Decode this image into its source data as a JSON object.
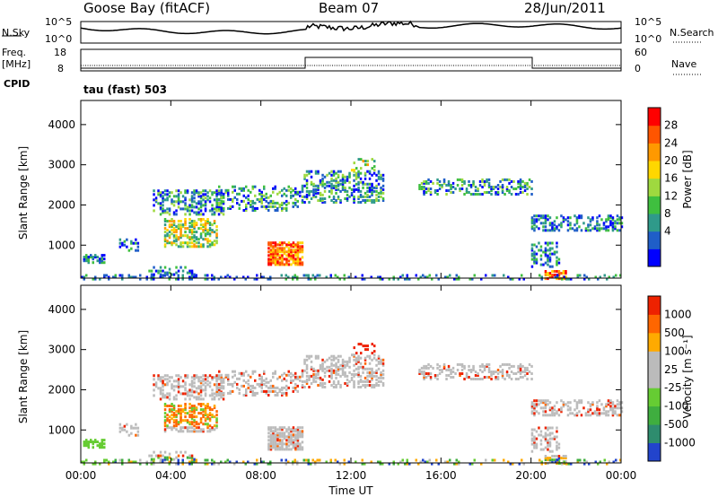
{
  "header": {
    "station": "Goose Bay (fitACF)",
    "beam": "Beam 07",
    "date": "28/Jun/2011"
  },
  "nsky_panel": {
    "left_label": "N.Sky",
    "right_label": "N.Search",
    "ticks": [
      "10^5",
      "10^0"
    ]
  },
  "freq_panel": {
    "left_label_1": "Freq.",
    "left_label_2": "[MHz]",
    "left_ticks": [
      "18",
      "8"
    ],
    "right_label": "Nave",
    "right_ticks": [
      "60",
      "0"
    ],
    "cpid_label": "CPID",
    "cpid_text": "tau (fast) 503"
  },
  "chart_data": [
    {
      "type": "heatmap",
      "name": "power",
      "ylabel": "Slant Range [km]",
      "yticks": [
        1000,
        2000,
        3000,
        4000
      ],
      "ylim": [
        180,
        4600
      ],
      "xlim": [
        0,
        24
      ],
      "colorbar": {
        "label": "Power [dB]",
        "ticks": [
          "28",
          "24",
          "20",
          "16",
          "12",
          "8",
          "4"
        ],
        "colors": [
          "#0000ff",
          "#1f5ec8",
          "#2f9a8a",
          "#3fbf3f",
          "#9fd93f",
          "#ffd700",
          "#ff9900",
          "#ff5500",
          "#ff0000"
        ]
      }
    },
    {
      "type": "heatmap",
      "name": "velocity",
      "ylabel": "Slant Range [km]",
      "xlabel": "Time UT",
      "yticks": [
        1000,
        2000,
        3000,
        4000
      ],
      "ylim": [
        180,
        4600
      ],
      "xlim": [
        0,
        24
      ],
      "xticks": [
        "00:00",
        "04:00",
        "08:00",
        "12:00",
        "16:00",
        "20:00",
        "00:00"
      ],
      "colorbar": {
        "label": "Velocity [m s⁻¹]",
        "ticks": [
          "1000",
          "500",
          "100",
          "25",
          "-25",
          "-100",
          "-500",
          "-1000"
        ],
        "colors": [
          "#2244cc",
          "#2e8c6e",
          "#3fae3f",
          "#66cc33",
          "#bbbbbb",
          "#bbbbbb",
          "#ffaa00",
          "#ff6600",
          "#ee2200"
        ]
      }
    }
  ]
}
